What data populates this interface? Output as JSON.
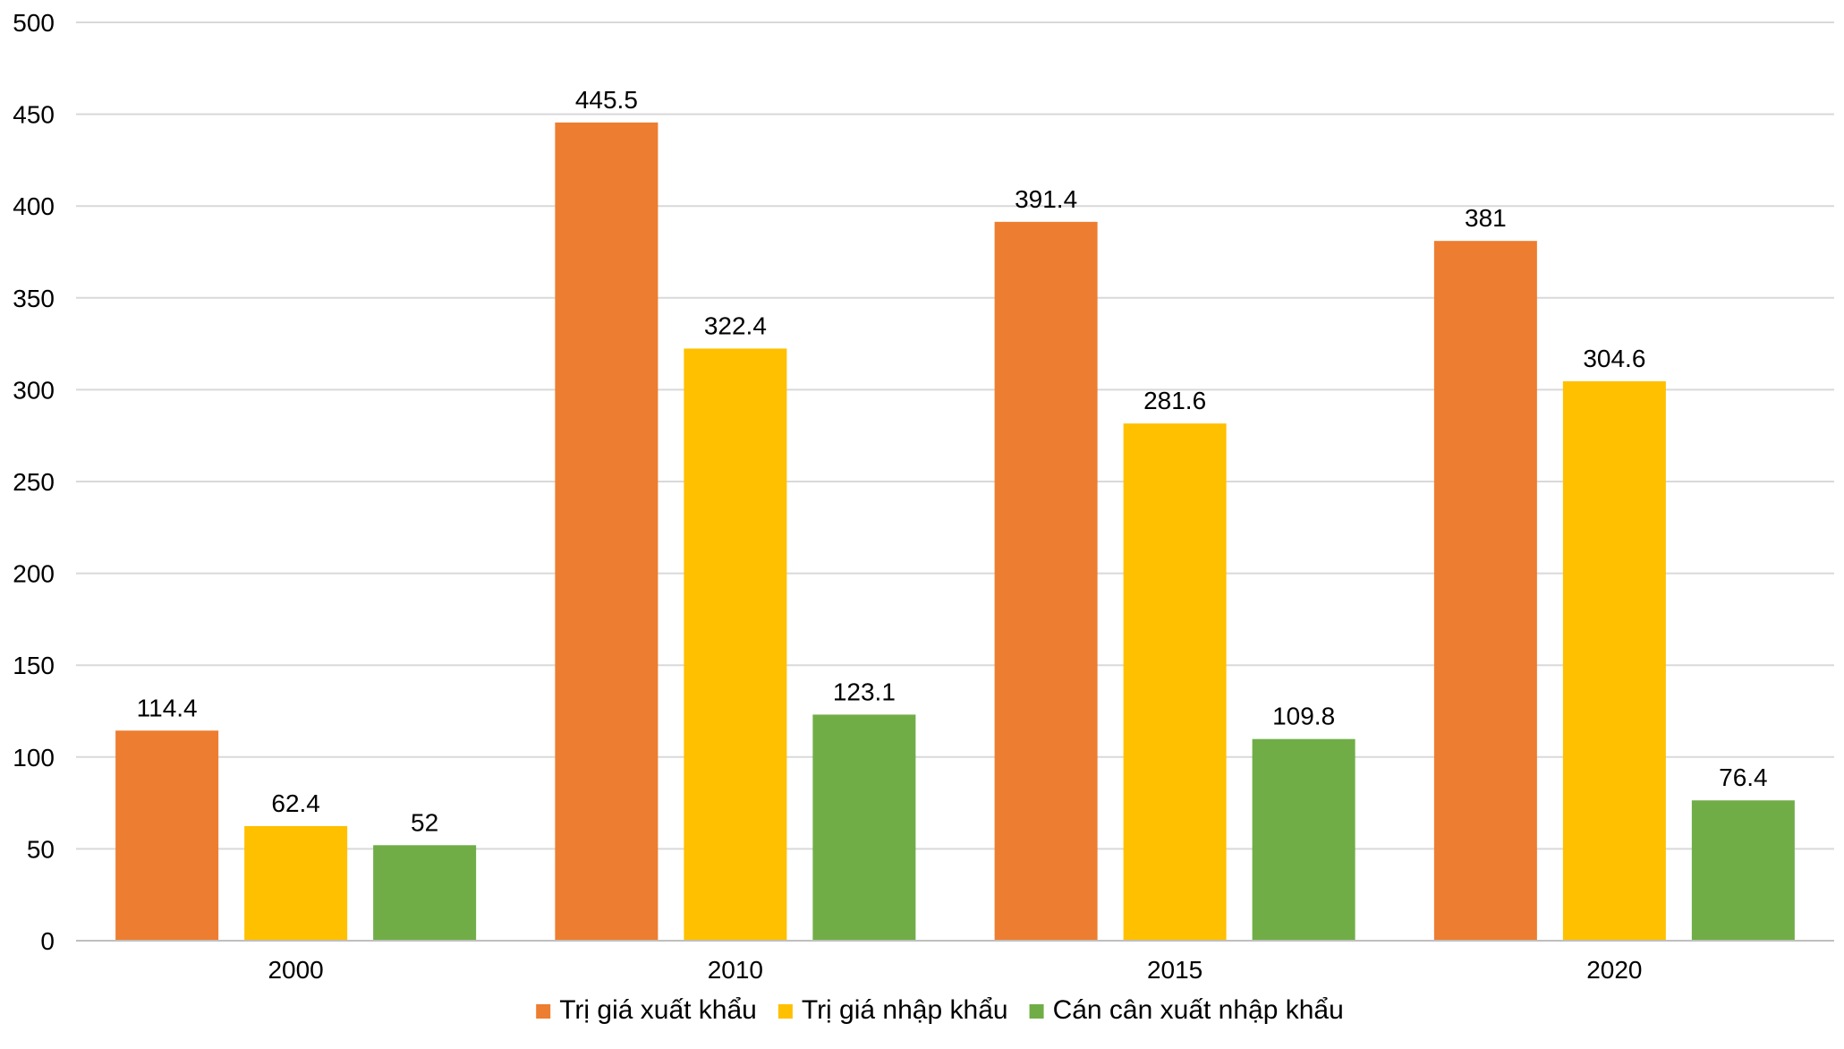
{
  "chart_data": {
    "type": "bar",
    "title": "",
    "xlabel": "",
    "ylabel": "",
    "categories": [
      "2000",
      "2010",
      "2015",
      "2020"
    ],
    "ylim": [
      0,
      500
    ],
    "yticks": [
      0,
      50,
      100,
      150,
      200,
      250,
      300,
      350,
      400,
      450,
      500
    ],
    "grid": true,
    "legend_position": "bottom",
    "data_labels": true,
    "series": [
      {
        "name": "Trị giá xuất khẩu",
        "color": "#ED7D31",
        "values": [
          114.4,
          445.5,
          391.4,
          381
        ]
      },
      {
        "name": "Trị giá nhập khẩu",
        "color": "#FFC000",
        "values": [
          62.4,
          322.4,
          281.6,
          304.6
        ]
      },
      {
        "name": "Cán cân xuất nhập khẩu",
        "color": "#70AD47",
        "values": [
          52,
          123.1,
          109.8,
          76.4
        ]
      }
    ]
  }
}
